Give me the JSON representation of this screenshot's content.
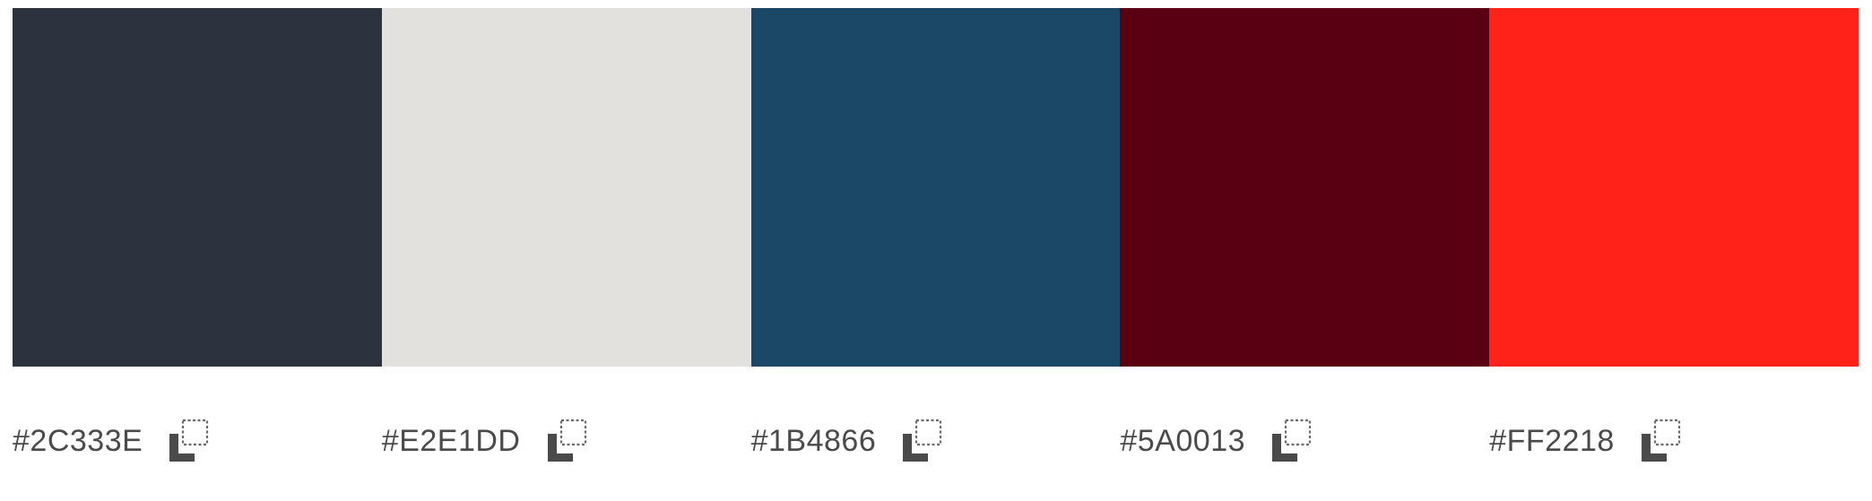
{
  "palette": {
    "colors": [
      {
        "hex": "#2C333E",
        "label": "#2C333E"
      },
      {
        "hex": "#E2E1DD",
        "label": "#E2E1DD"
      },
      {
        "hex": "#1B4866",
        "label": "#1B4866"
      },
      {
        "hex": "#5A0013",
        "label": "#5A0013"
      },
      {
        "hex": "#FF2218",
        "label": "#FF2218"
      }
    ],
    "icon": "copy-icon",
    "label_color": "#4A4A4A",
    "icon_color": "#4A4A4A"
  }
}
